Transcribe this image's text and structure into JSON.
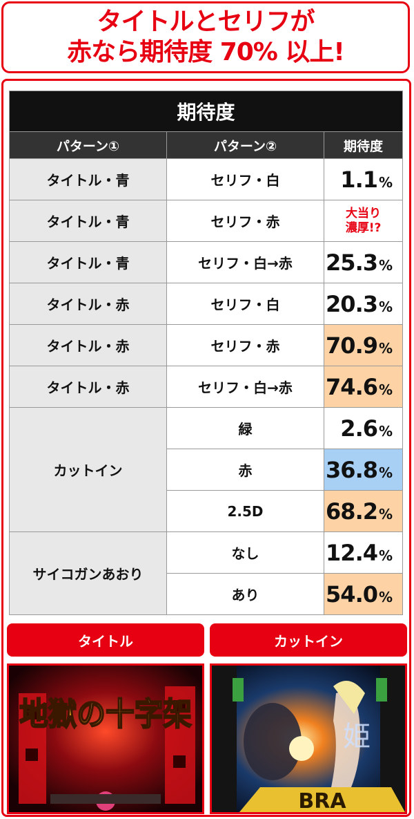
{
  "headline": {
    "line1": "タイトルとセリフが",
    "line2": "赤なら期待度 70% 以上!"
  },
  "table": {
    "title": "期待度",
    "headers": [
      "パターン①",
      "パターン②",
      "期待度"
    ],
    "rows": [
      {
        "p1": "タイトル・青",
        "p2": "セリフ・白",
        "value": "1.1",
        "unit": "%"
      },
      {
        "p1": "タイトル・青",
        "p2": "セリフ・赤",
        "note1": "大当り",
        "note2": "濃厚!?"
      },
      {
        "p1": "タイトル・青",
        "p2": "セリフ・白→赤",
        "value": "25.3",
        "unit": "%"
      },
      {
        "p1": "タイトル・赤",
        "p2": "セリフ・白",
        "value": "20.3",
        "unit": "%"
      },
      {
        "p1": "タイトル・赤",
        "p2": "セリフ・赤",
        "value": "70.9",
        "unit": "%"
      },
      {
        "p1": "タイトル・赤",
        "p2": "セリフ・白→赤",
        "value": "74.6",
        "unit": "%"
      },
      {
        "p1": "カットイン",
        "p2": "緑",
        "value": "2.6",
        "unit": "%"
      },
      {
        "p2": "赤",
        "value": "36.8",
        "unit": "%"
      },
      {
        "p2": "2.5D",
        "value": "68.2",
        "unit": "%"
      },
      {
        "p1": "サイコガンあおり",
        "p2": "なし",
        "value": "12.4",
        "unit": "%"
      },
      {
        "p2": "あり",
        "value": "54.0",
        "unit": "%"
      }
    ]
  },
  "panels": {
    "left_label": "タイトル",
    "right_label": "カットイン",
    "left_image_text": "地獄の十字架",
    "right_image_text": "姫",
    "right_image_banner": "BRA"
  },
  "colors": {
    "accent_red": "#e60012",
    "highlight_orange": "#fdd3a6",
    "highlight_blue": "#a8d0f5",
    "header_black": "#111111"
  }
}
